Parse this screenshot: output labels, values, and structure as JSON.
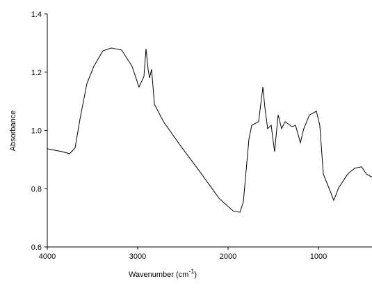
{
  "chart_data": {
    "type": "line",
    "x_label": "Wavenumber (cm",
    "x_label_sup": "-1",
    "x_label_end": ")",
    "y_label": "Absorbance",
    "x": [
      4000,
      3831,
      3754,
      3692,
      3638,
      3562,
      3485,
      3385,
      3292,
      3177,
      3062,
      2985,
      2931,
      2908,
      2885,
      2869,
      2846,
      2815,
      2715,
      2523,
      2292,
      2100,
      1946,
      1869,
      1831,
      1769,
      1738,
      1662,
      1615,
      1592,
      1562,
      1523,
      1485,
      1446,
      1408,
      1369,
      1292,
      1254,
      1200,
      1162,
      1100,
      1023,
      985,
      946,
      869,
      831,
      777,
      677,
      600,
      523,
      469,
      408
    ],
    "y": [
      0.937,
      0.927,
      0.92,
      0.94,
      1.04,
      1.16,
      1.22,
      1.273,
      1.283,
      1.276,
      1.22,
      1.149,
      1.185,
      1.28,
      1.21,
      1.18,
      1.21,
      1.09,
      1.03,
      0.946,
      0.85,
      0.767,
      0.724,
      0.719,
      0.755,
      0.97,
      1.018,
      1.03,
      1.149,
      1.078,
      1.006,
      1.018,
      0.927,
      1.053,
      1.006,
      1.03,
      1.013,
      1.018,
      0.958,
      1.006,
      1.053,
      1.066,
      1.018,
      0.85,
      0.791,
      0.76,
      0.803,
      0.85,
      0.87,
      0.875,
      0.85,
      0.84
    ],
    "color": "#000000",
    "xlim": [
      4000,
      400
    ],
    "xticks": [
      4000,
      3000,
      2000,
      1000
    ],
    "ylim": [
      0.6,
      1.4
    ],
    "yticks": [
      {
        "value": 0.6,
        "label": "0.6"
      },
      {
        "value": 0.8,
        "label": "0.8"
      },
      {
        "value": 1.0,
        "label": "1.0"
      },
      {
        "value": 1.2,
        "label": "1.2"
      },
      {
        "value": 1.4,
        "label": "1.4"
      }
    ]
  }
}
